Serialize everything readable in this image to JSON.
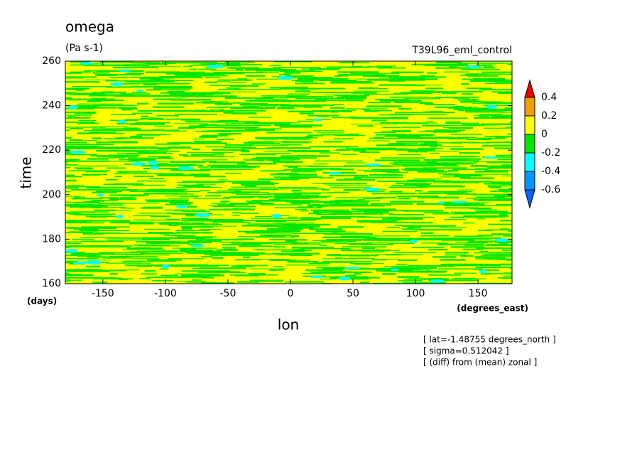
{
  "chart_data": {
    "type": "contour",
    "title": "omega",
    "subtitle": "(Pa s-1)",
    "experiment": "T39L96_eml_control",
    "x_label": "lon",
    "x_units": "(degrees_east)",
    "y_label": "time",
    "y_units": "(days)",
    "xlim": [
      -180,
      177.1875
    ],
    "xticks": [
      -150,
      -100,
      -50,
      0,
      50,
      100,
      150
    ],
    "ylim": [
      160,
      260
    ],
    "yticks": [
      160,
      180,
      200,
      220,
      240,
      260
    ],
    "colorbar": {
      "levels": [
        -0.6,
        -0.4,
        -0.2,
        0,
        0.2,
        0.4
      ],
      "colors": [
        "#0064ff",
        "#0096ff",
        "#00ffff",
        "#00e600",
        "#ffff00",
        "#f0a000",
        "#f00000"
      ]
    },
    "notes": [
      "[ lat=-1.48755 degrees_north ]",
      "[ sigma=0.512042 ]",
      "[ (diff) from (mean) zonal ]"
    ]
  }
}
